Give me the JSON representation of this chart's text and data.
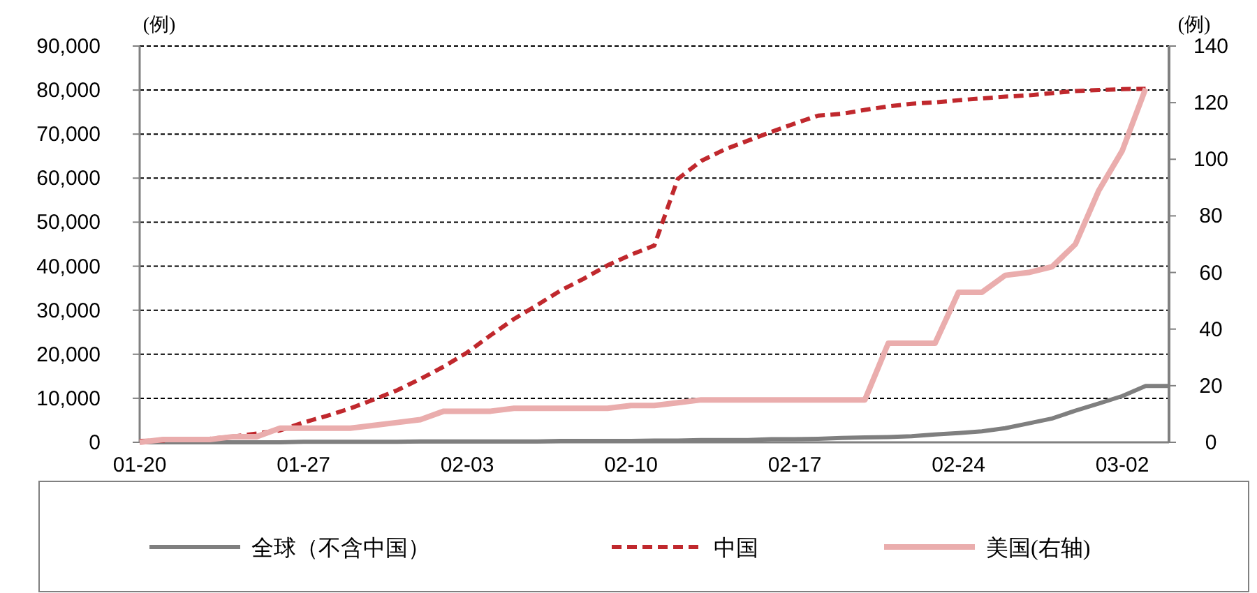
{
  "chart_data": {
    "type": "line",
    "ylabel": "(例)",
    "y2label": "(例)",
    "x": [
      "--01-20",
      "--01-21",
      "--01-22",
      "--01-23",
      "--01-24",
      "--01-25",
      "--01-26",
      "--01-27",
      "--01-28",
      "--01-29",
      "--01-30",
      "--01-31",
      "--02-01",
      "--02-02",
      "--02-03",
      "--02-04",
      "--02-05",
      "--02-06",
      "--02-07",
      "--02-08",
      "--02-09",
      "--02-10",
      "--02-11",
      "--02-12",
      "--02-13",
      "--02-14",
      "--02-15",
      "--02-16",
      "--02-17",
      "--02-18",
      "--02-19",
      "--02-20",
      "--02-21",
      "--02-22",
      "--02-23",
      "--02-24",
      "--02-25",
      "--02-26",
      "--02-27",
      "--02-28",
      "--02-29",
      "--03-01",
      "--03-02",
      "--03-03",
      "--03-04"
    ],
    "xlim": [
      "--01-20",
      "--03-04"
    ],
    "xticks": [
      {
        "value": "--01-20",
        "label": "01-20"
      },
      {
        "value": "--01-27",
        "label": "01-27"
      },
      {
        "value": "--02-03",
        "label": "02-03"
      },
      {
        "value": "--02-10",
        "label": "02-10"
      },
      {
        "value": "--02-17",
        "label": "02-17"
      },
      {
        "value": "--02-24",
        "label": "02-24"
      },
      {
        "value": "--03-02",
        "label": "03-02"
      }
    ],
    "ylim": [
      0,
      90000
    ],
    "yticks": [
      0,
      {
        "value": 10000,
        "label": "10,000"
      },
      {
        "value": 20000,
        "label": "20,000"
      },
      {
        "value": 30000,
        "label": "30,000"
      },
      {
        "value": 40000,
        "label": "40,000"
      },
      {
        "value": 50000,
        "label": "50,000"
      },
      {
        "value": 60000,
        "label": "60,000"
      },
      {
        "value": 70000,
        "label": "70,000"
      },
      {
        "value": 80000,
        "label": "80,000"
      },
      {
        "value": 90000,
        "label": "90,000"
      }
    ],
    "y2lim": [
      0,
      140
    ],
    "y2ticks": [
      0,
      20,
      40,
      60,
      80,
      100,
      120,
      140
    ],
    "grid": "y",
    "legend": "bottom",
    "series": [
      {
        "name": "全球（不含中国）",
        "color": "#7f7f7f",
        "line_style": "solid",
        "values": [
          0,
          0,
          0,
          0,
          0,
          0,
          0,
          100,
          100,
          100,
          100,
          100,
          200,
          200,
          200,
          200,
          200,
          200,
          300,
          300,
          300,
          300,
          400,
          400,
          500,
          500,
          500,
          700,
          700,
          800,
          1000,
          1100,
          1200,
          1400,
          1800,
          2100,
          2500,
          3200,
          4300,
          5400,
          7200,
          8800,
          10500,
          12800,
          12800
        ]
      },
      {
        "name": "中国",
        "color": "#c0282d",
        "line_style": "dashed",
        "values": [
          300,
          400,
          600,
          800,
          1300,
          2000,
          2700,
          4500,
          6000,
          7700,
          9700,
          11800,
          14400,
          17200,
          20400,
          24300,
          28000,
          31200,
          34500,
          37200,
          40200,
          42600,
          44700,
          59800,
          63900,
          66500,
          68500,
          70500,
          72400,
          74200,
          74600,
          75500,
          76300,
          76900,
          77200,
          77700,
          78100,
          78500,
          78800,
          79300,
          79800,
          80000,
          80200,
          80300,
          null
        ]
      },
      {
        "name": "美国(右轴)",
        "color": "#eaadad",
        "line_style": "solid",
        "axis": "y2",
        "values": [
          0,
          1,
          1,
          1,
          2,
          2,
          5,
          5,
          5,
          5,
          6,
          7,
          8,
          11,
          11,
          11,
          12,
          12,
          12,
          12,
          12,
          13,
          13,
          14,
          15,
          15,
          15,
          15,
          15,
          15,
          15,
          15,
          35,
          35,
          35,
          53,
          53,
          59,
          60,
          62,
          70,
          89,
          103,
          125,
          null
        ]
      }
    ]
  }
}
